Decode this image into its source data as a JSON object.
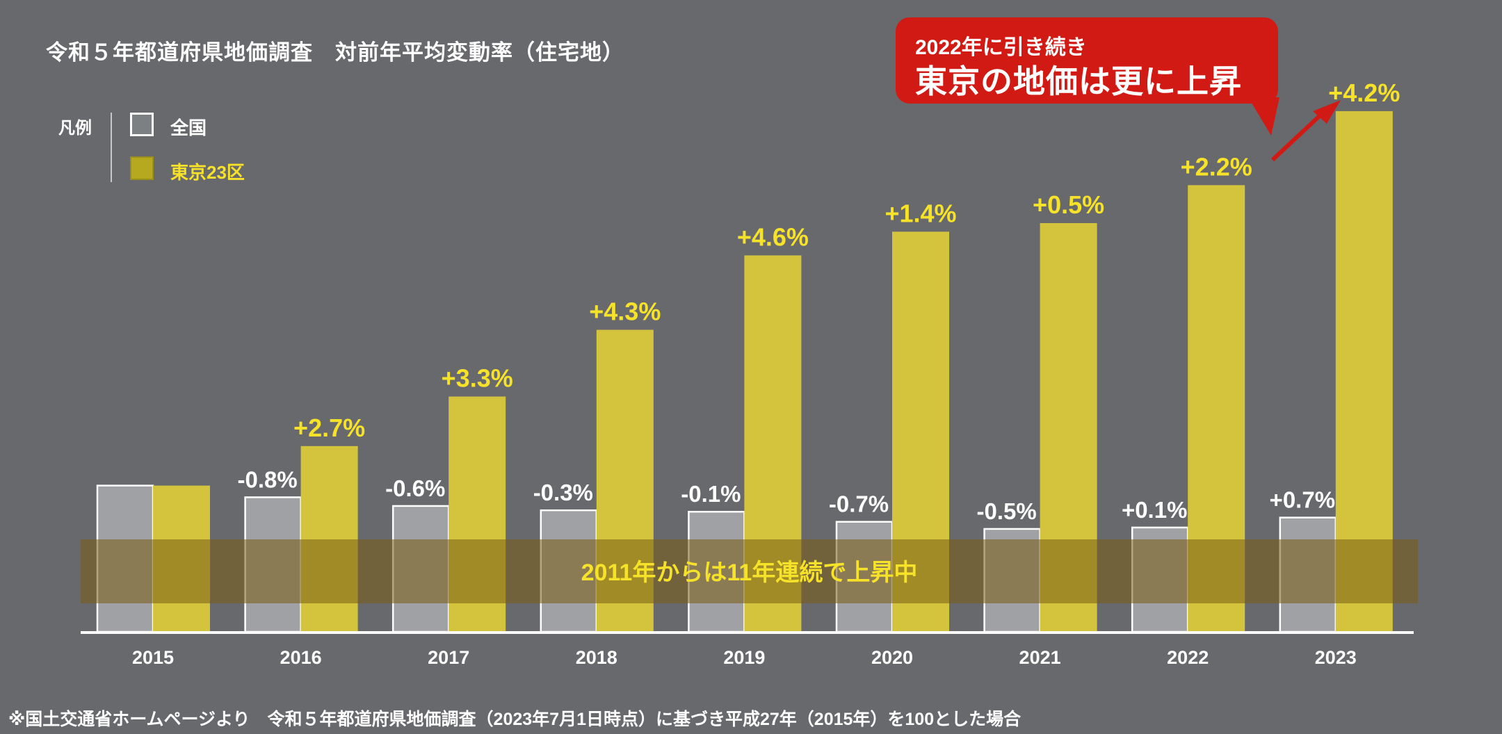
{
  "title": "令和５年都道府県地価調査　対前年平均変動率（住宅地）",
  "legend": {
    "title": "凡例",
    "items": [
      {
        "label": "全国",
        "color": "#a0a1a4"
      },
      {
        "label": "東京23区",
        "color": "#d3c33d"
      }
    ]
  },
  "callout": {
    "line1": "2022年に引き続き",
    "line2": "東京の地価は更に上昇",
    "color": "#d21a14"
  },
  "band_text": "2011年からは11年連続で上昇中",
  "footnote": "※国土交通省ホームページより　令和５年都道府県地価調査（2023年7月1日時点）に基づき平成27年（2015年）を100とした場合",
  "chart_data": {
    "type": "bar",
    "categories": [
      "2015",
      "2016",
      "2017",
      "2018",
      "2019",
      "2020",
      "2021",
      "2022",
      "2023"
    ],
    "base_index": 100,
    "series": [
      {
        "name": "全国",
        "color": "#a0a1a4",
        "label_color": "#ffffff",
        "values": [
          null,
          -0.8,
          -0.6,
          -0.3,
          -0.1,
          -0.7,
          -0.5,
          0.1,
          0.7
        ],
        "labels": [
          "",
          "-0.8%",
          "-0.6%",
          "-0.3%",
          "-0.1%",
          "-0.7%",
          "-0.5%",
          "+0.1%",
          "+0.7%"
        ]
      },
      {
        "name": "東京23区",
        "color": "#d3c33d",
        "label_color": "#f7e22a",
        "values": [
          null,
          2.7,
          3.3,
          4.3,
          4.6,
          1.4,
          0.5,
          2.2,
          4.2
        ],
        "labels": [
          "",
          "+2.7%",
          "+3.3%",
          "+4.3%",
          "+4.6%",
          "+1.4%",
          "+0.5%",
          "+2.2%",
          "+4.2%"
        ]
      }
    ],
    "grid": false,
    "legend_position": "top-left"
  }
}
